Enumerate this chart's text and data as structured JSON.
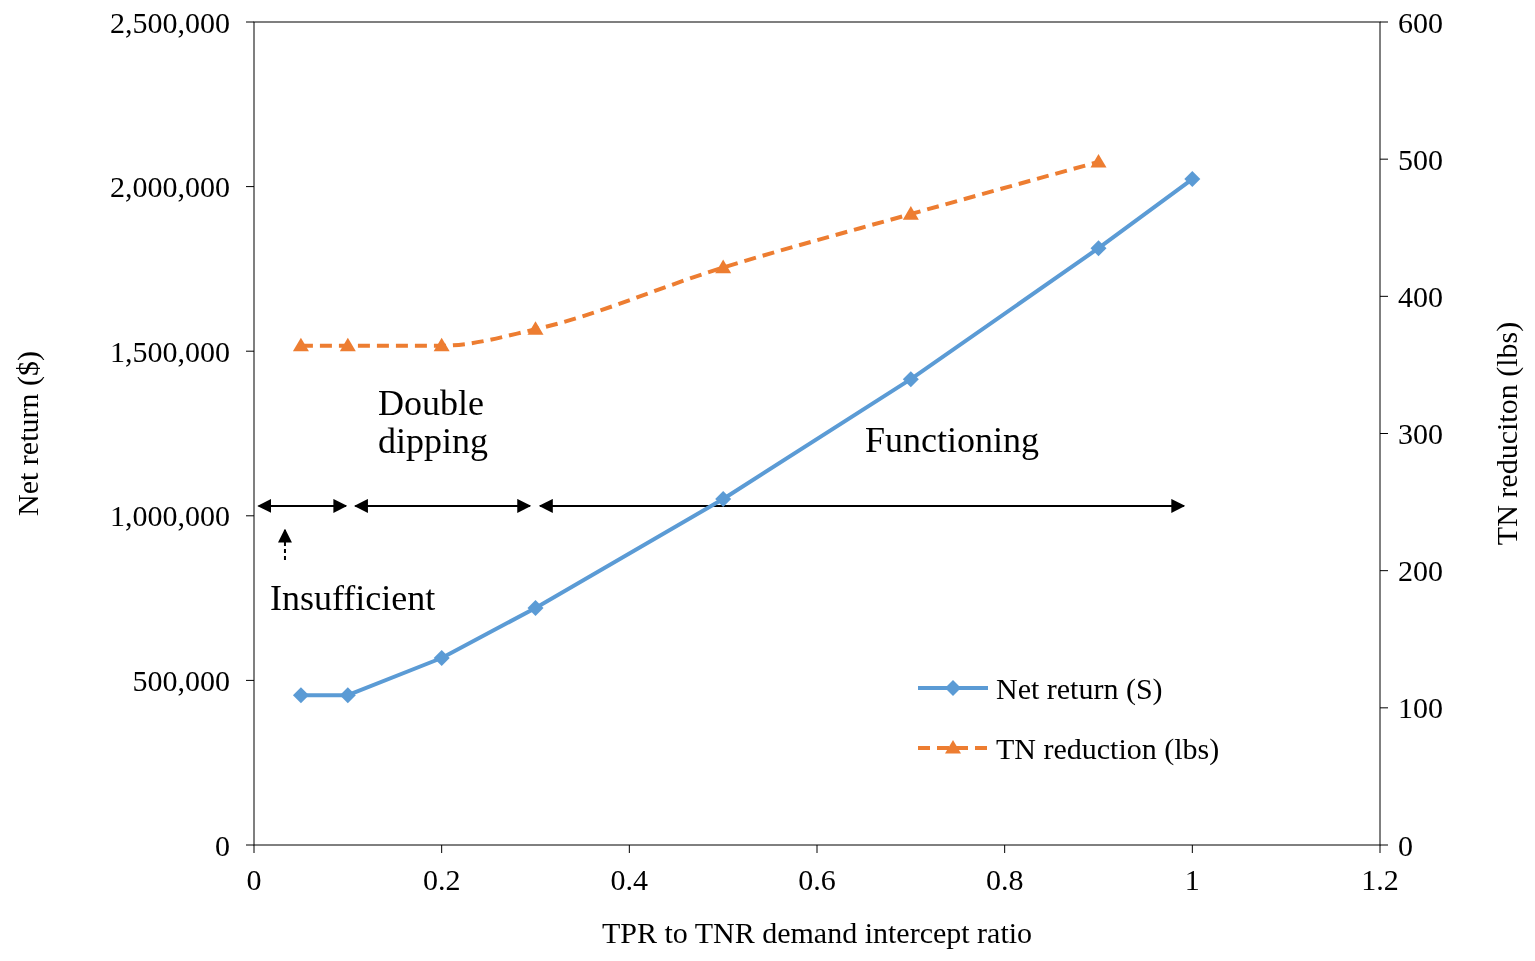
{
  "chart_data": {
    "type": "line",
    "xlabel": "TPR to TNR demand intercept ratio",
    "ylabel": "Net return ($)",
    "y2label": "TN reduciton (lbs)",
    "xlim": [
      0,
      1.2
    ],
    "xticks": [
      0,
      0.2,
      0.4,
      0.6,
      0.8,
      1,
      1.2
    ],
    "ylim": [
      0,
      2500000
    ],
    "yticks": [
      {
        "value": 0,
        "label": "0"
      },
      {
        "value": 500000,
        "label": "500,000"
      },
      {
        "value": 1000000,
        "label": "1,000,000"
      },
      {
        "value": 1500000,
        "label": "1,500,000"
      },
      {
        "value": 2000000,
        "label": "2,000,000"
      },
      {
        "value": 2500000,
        "label": "2,500,000"
      }
    ],
    "y2lim": [
      0,
      600
    ],
    "y2ticks": [
      0,
      100,
      200,
      300,
      400,
      500,
      600
    ],
    "legend": "bottom right",
    "grid": false,
    "series": [
      {
        "name": "Net return (S)",
        "color": "#5b9bd5",
        "marker": "diamond",
        "line_style": "solid",
        "x": [
          0.05,
          0.1,
          0.2,
          0.3,
          0.5,
          0.7,
          0.9,
          1
        ],
        "values": [
          455000,
          455000,
          568000,
          720000,
          1051000,
          1415000,
          1813000,
          2023000
        ]
      },
      {
        "name": "TN reduction (lbs)",
        "color": "#ed7d31",
        "marker": "triangle",
        "line_style": "dashed",
        "axis": "y2",
        "x": [
          0.05,
          0.1,
          0.2,
          0.3,
          0.5,
          0.7,
          0.9
        ],
        "values": [
          364,
          364,
          364,
          376,
          421,
          460,
          498
        ]
      }
    ],
    "annotations": [
      "Double dipping",
      "Functioning",
      "Insufficient"
    ]
  }
}
